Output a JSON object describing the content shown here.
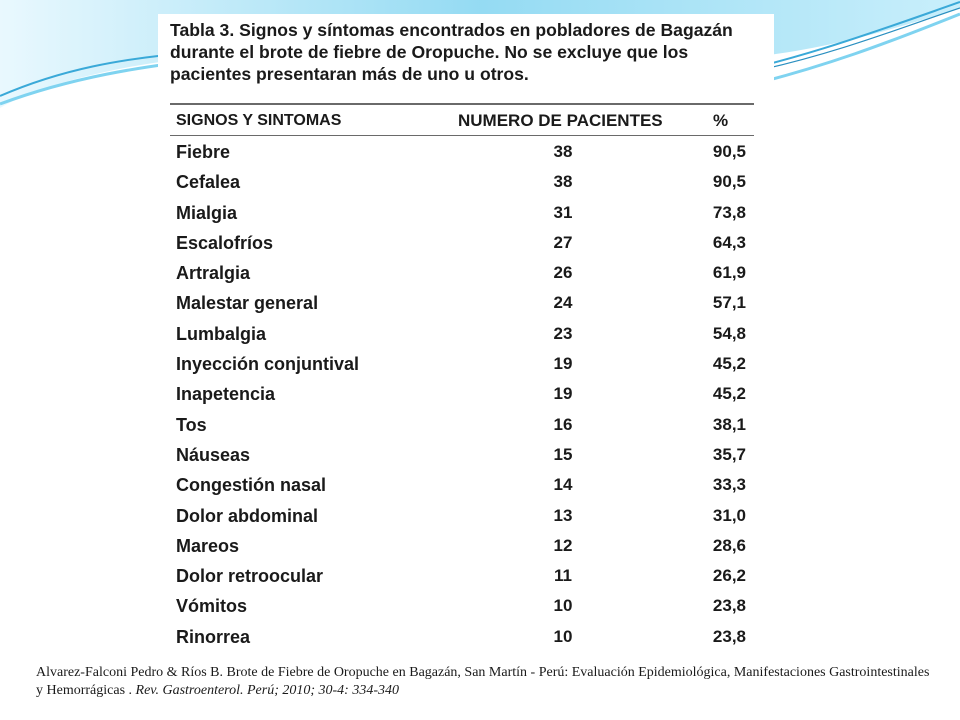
{
  "table": {
    "caption": "Tabla 3. Signos y síntomas encontrados en pobladores de Bagazán durante el brote de fiebre de Oropuche. No se excluye que los pacientes presentaran más de uno u otros.",
    "headers": {
      "signs": "SIGNOS Y SINTOMAS",
      "count": "NUMERO DE PACIENTES",
      "percent": "%"
    },
    "rows": [
      {
        "name": "Fiebre",
        "count": "38",
        "percent": "90,5"
      },
      {
        "name": "Cefalea",
        "count": "38",
        "percent": "90,5"
      },
      {
        "name": "Mialgia",
        "count": "31",
        "percent": "73,8"
      },
      {
        "name": "Escalofríos",
        "count": "27",
        "percent": "64,3"
      },
      {
        "name": "Artralgia",
        "count": "26",
        "percent": "61,9"
      },
      {
        "name": "Malestar general",
        "count": "24",
        "percent": "57,1"
      },
      {
        "name": "Lumbalgia",
        "count": "23",
        "percent": "54,8"
      },
      {
        "name": "Inyección conjuntival",
        "count": "19",
        "percent": "45,2"
      },
      {
        "name": "Inapetencia",
        "count": "19",
        "percent": "45,2"
      },
      {
        "name": "Tos",
        "count": "16",
        "percent": "38,1"
      },
      {
        "name": "Náuseas",
        "count": "15",
        "percent": "35,7"
      },
      {
        "name": "Congestión nasal",
        "count": "14",
        "percent": "33,3"
      },
      {
        "name": "Dolor abdominal",
        "count": "13",
        "percent": "31,0"
      },
      {
        "name": "Mareos",
        "count": "12",
        "percent": "28,6"
      },
      {
        "name": "Dolor retroocular",
        "count": "11",
        "percent": "26,2"
      },
      {
        "name": "Vómitos",
        "count": "10",
        "percent": "23,8"
      },
      {
        "name": "Rinorrea",
        "count": "10",
        "percent": "23,8"
      }
    ]
  },
  "citation": {
    "text": "Alvarez-Falconi Pedro & Ríos B. Brote de Fiebre de Oropuche en Bagazán, San Martín - Perú: Evaluación Epidemiológica, Manifestaciones Gastrointestinales y Hemorrágicas . ",
    "journal": "Rev. Gastroenterol. Perú; 2010; 30-4: 334-340"
  },
  "colors": {
    "swoosh_light": "#cdeefa",
    "swoosh_mid": "#7fd3f0",
    "swoosh_dark": "#3aa9d8",
    "text": "#1a1a1a",
    "rule": "#6a6a6a"
  }
}
